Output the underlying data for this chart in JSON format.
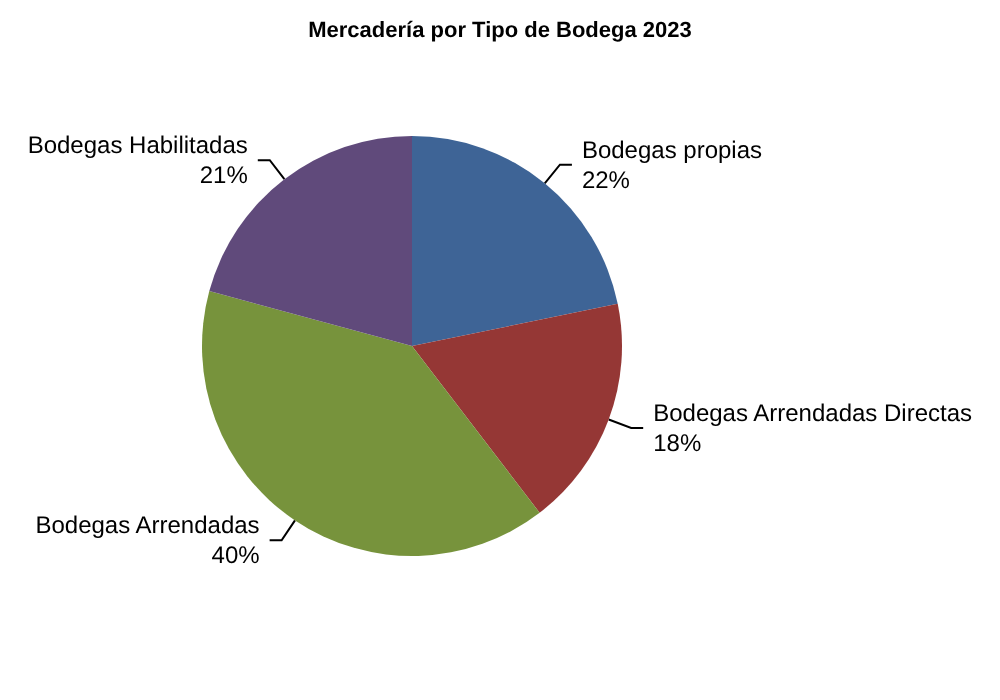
{
  "chart_data": {
    "type": "pie",
    "title": "Mercadería por Tipo de Bodega 2023",
    "categories": [
      "Bodegas propias",
      "Bodegas Arrendadas Directas",
      "Bodegas Arrendadas",
      "Bodegas Habilitadas"
    ],
    "values": [
      22,
      18,
      40,
      21
    ],
    "value_labels": [
      "22%",
      "18%",
      "40%",
      "21%"
    ],
    "colors": [
      "#3e6496",
      "#953735",
      "#77933c",
      "#604a7b"
    ],
    "legend": false
  }
}
